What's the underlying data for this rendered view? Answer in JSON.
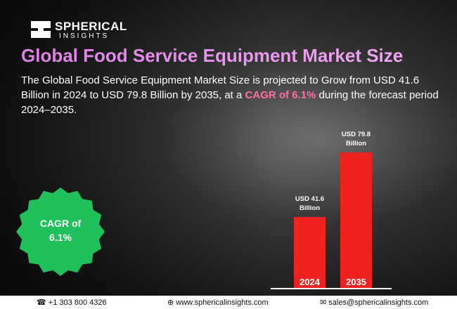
{
  "chart_data": {
    "type": "bar",
    "title": "Global Food Service Equipment Market Size",
    "categories": [
      "2024",
      "2035"
    ],
    "values": [
      41.6,
      79.8
    ],
    "value_labels": [
      "USD 41.6 Billion",
      "USD 79.8 Billion"
    ],
    "color": "#f0221f"
  },
  "logo": [
    "SPHERICAL",
    "INSIGHTS"
  ],
  "description": [
    "The Global Food Service Equipment Market Size is projected to Grow from USD 41.6 Billion in 2024 to USD 79.8 Billion by 2035, at a ",
    "CAGR of 6.1%",
    " during the forecast period 2024–2035."
  ],
  "badge": "CAGR of 6.1%",
  "footer": {
    "phone": "+1 303 800 4326",
    "website": "www.sphericalinsights.com",
    "email": "sales@sphericalinsights.com"
  }
}
